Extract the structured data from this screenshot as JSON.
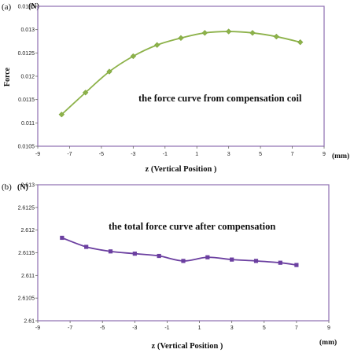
{
  "chart_data": [
    {
      "type": "line",
      "panel_label": "(a)",
      "ylabel": "Force",
      "y_unit": "(N)",
      "xlabel": "z  (Vertical Position )",
      "x_unit": "(mm)",
      "annotation": "the force curve from compensation coil",
      "xlim": [
        -9,
        9
      ],
      "ylim": [
        0.0105,
        0.0135
      ],
      "x_ticks": [
        "-9",
        "-7",
        "-5",
        "-3",
        "-1",
        "1",
        "3",
        "5",
        "7",
        "9"
      ],
      "y_ticks": [
        "0.0105",
        "0.011",
        "0.0115",
        "0.012",
        "0.0125",
        "0.013",
        "0.0135"
      ],
      "grid": false,
      "series": [
        {
          "color": "#8db24a",
          "marker": "diamond",
          "x": [
            -7.5,
            -6,
            -4.5,
            -3,
            -1.5,
            0,
            1.5,
            3,
            4.5,
            6,
            7.5
          ],
          "y": [
            0.01118,
            0.01165,
            0.0121,
            0.01243,
            0.01267,
            0.01282,
            0.01293,
            0.01296,
            0.01293,
            0.01285,
            0.01273
          ]
        }
      ]
    },
    {
      "type": "line",
      "panel_label": "(b)",
      "ylabel": "",
      "y_unit": "(N)",
      "xlabel": "z  (Vertical Position )",
      "x_unit": "(mm)",
      "annotation": "the total force curve after compensation",
      "xlim": [
        -9,
        9
      ],
      "ylim": [
        2.61,
        2.613
      ],
      "x_ticks": [
        "-9",
        "-7",
        "-5",
        "-3",
        "-1",
        "1",
        "3",
        "5",
        "7",
        "9"
      ],
      "y_ticks": [
        "2.61",
        "2.6105",
        "2.611",
        "2.6115",
        "2.612",
        "2.6125",
        "2.613"
      ],
      "grid": false,
      "series": [
        {
          "color": "#6b3fa0",
          "marker": "square",
          "x": [
            -7.5,
            -6,
            -4.5,
            -3,
            -1.5,
            0,
            1.5,
            3,
            4.5,
            6,
            7
          ],
          "y": [
            2.61183,
            2.61163,
            2.61153,
            2.61148,
            2.61143,
            2.61132,
            2.6114,
            2.61135,
            2.61132,
            2.61128,
            2.61123
          ]
        }
      ]
    }
  ]
}
